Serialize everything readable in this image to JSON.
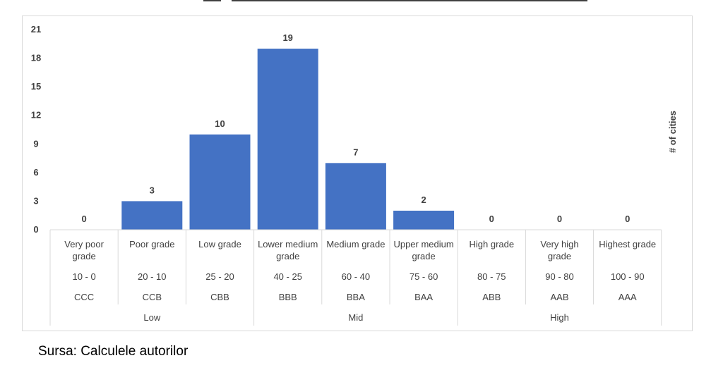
{
  "chart_data": {
    "type": "bar",
    "ylabel": "# of cities",
    "ylim": [
      0,
      21
    ],
    "yticks": [
      0,
      3,
      6,
      9,
      12,
      15,
      18,
      21
    ],
    "categories": [
      {
        "grade": [
          "Very poor",
          "grade"
        ],
        "range": "10 - 0",
        "code": "CCC"
      },
      {
        "grade": [
          "Poor grade"
        ],
        "range": "20 - 10",
        "code": "CCB"
      },
      {
        "grade": [
          "Low grade"
        ],
        "range": "25 - 20",
        "code": "CBB"
      },
      {
        "grade": [
          "Lower medium",
          "grade"
        ],
        "range": "40 - 25",
        "code": "BBB"
      },
      {
        "grade": [
          "Medium grade"
        ],
        "range": "60 - 40",
        "code": "BBA"
      },
      {
        "grade": [
          "Upper medium",
          "grade"
        ],
        "range": "75 - 60",
        "code": "BAA"
      },
      {
        "grade": [
          "High grade"
        ],
        "range": "80 - 75",
        "code": "ABB"
      },
      {
        "grade": [
          "Very high",
          "grade"
        ],
        "range": "90 - 80",
        "code": "AAB"
      },
      {
        "grade": [
          "Highest grade"
        ],
        "range": "100 - 90",
        "code": "AAA"
      }
    ],
    "values": [
      0,
      3,
      10,
      19,
      7,
      2,
      0,
      0,
      0
    ],
    "groups": [
      {
        "name": "Low",
        "span": 3
      },
      {
        "name": "Mid",
        "span": 3
      },
      {
        "name": "High",
        "span": 3
      }
    ],
    "bar_color": "#4472c4",
    "grid": false
  },
  "source": "Sursa: Calculele autorilor"
}
